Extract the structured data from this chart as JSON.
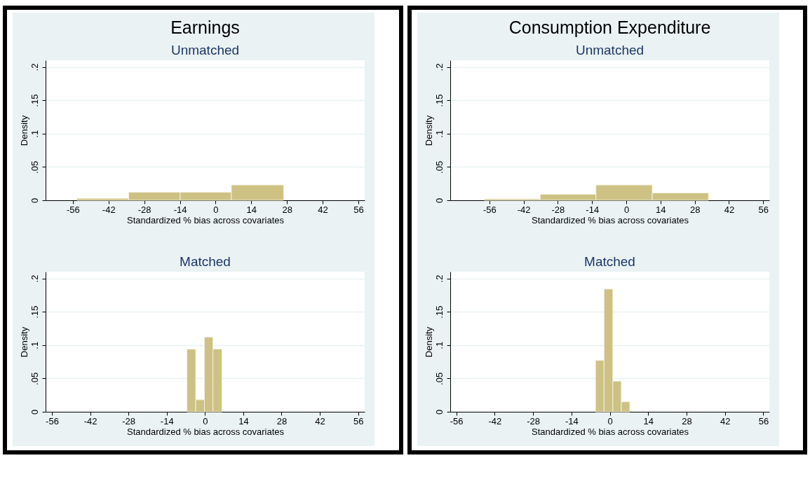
{
  "chart_data": [
    {
      "type": "histogram",
      "title": "Earnings",
      "subtitle": "Unmatched",
      "xlabel": "Standardized % bias across covariates",
      "ylabel": "Density",
      "bins": [
        -54.4,
        -34.1,
        -13.9,
        6.2,
        26.7
      ],
      "values": [
        0.003,
        0.012,
        0.012,
        0.023
      ],
      "color": "#cdc284",
      "xlim": [
        -66.7,
        58.5
      ],
      "xticks": [
        -56,
        -42,
        -28,
        -14,
        0,
        14,
        28,
        42,
        56
      ],
      "ylim": [
        0,
        0.21
      ],
      "yticks": [
        {
          "value": 0,
          "label": "0"
        },
        {
          "value": 0.05,
          "label": ".05"
        },
        {
          "value": 0.1,
          "label": ".1"
        },
        {
          "value": 0.15,
          "label": ".15"
        },
        {
          "value": 0.2,
          "label": ".2"
        }
      ],
      "grid": "y"
    },
    {
      "type": "histogram",
      "title": "Matched",
      "xlabel": "Standardized % bias across covariates",
      "ylabel": "Density",
      "bins": [
        -6.6,
        -3.4,
        -0.2,
        2.9,
        6.2
      ],
      "values": [
        0.094,
        0.018,
        0.112,
        0.094
      ],
      "color": "#cdc284",
      "xlim": [
        -58.3,
        58.4
      ],
      "xticks": [
        -56,
        -42,
        -28,
        -14,
        0,
        14,
        28,
        42,
        56
      ],
      "ylim": [
        0,
        0.21
      ],
      "yticks": [
        {
          "value": 0,
          "label": "0"
        },
        {
          "value": 0.05,
          "label": ".05"
        },
        {
          "value": 0.1,
          "label": ".1"
        },
        {
          "value": 0.15,
          "label": ".15"
        },
        {
          "value": 0.2,
          "label": ".2"
        }
      ],
      "grid": "y"
    },
    {
      "type": "histogram",
      "title": "Consumption Expenditure",
      "subtitle": "Unmatched",
      "xlabel": "Standardized % bias across covariates",
      "ylabel": "Density",
      "bins": [
        -58.1,
        -35.2,
        -12.4,
        10.6,
        33.6
      ],
      "values": [
        0.002,
        0.009,
        0.023,
        0.011
      ],
      "color": "#cdc284",
      "xlim": [
        -72,
        58.5
      ],
      "xticks": [
        -56,
        -42,
        -28,
        -14,
        0,
        14,
        28,
        42,
        56
      ],
      "ylim": [
        0,
        0.21
      ],
      "yticks": [
        {
          "value": 0,
          "label": "0"
        },
        {
          "value": 0.05,
          "label": ".05"
        },
        {
          "value": 0.1,
          "label": ".1"
        },
        {
          "value": 0.15,
          "label": ".15"
        },
        {
          "value": 0.2,
          "label": ".2"
        }
      ],
      "grid": "y"
    },
    {
      "type": "histogram",
      "title": "Matched",
      "xlabel": "Standardized % bias across covariates",
      "ylabel": "Density",
      "bins": [
        -5.2,
        -2.1,
        1.1,
        4.2,
        7.3
      ],
      "values": [
        0.077,
        0.184,
        0.046,
        0.015
      ],
      "color": "#cdc284",
      "xlim": [
        -58.2,
        58.2
      ],
      "xticks": [
        -56,
        -42,
        -28,
        -14,
        0,
        14,
        28,
        42,
        56
      ],
      "ylim": [
        0,
        0.21
      ],
      "yticks": [
        {
          "value": 0,
          "label": "0"
        },
        {
          "value": 0.05,
          "label": ".05"
        },
        {
          "value": 0.1,
          "label": ".1"
        },
        {
          "value": 0.15,
          "label": ".15"
        },
        {
          "value": 0.2,
          "label": ".2"
        }
      ],
      "grid": "y"
    }
  ]
}
